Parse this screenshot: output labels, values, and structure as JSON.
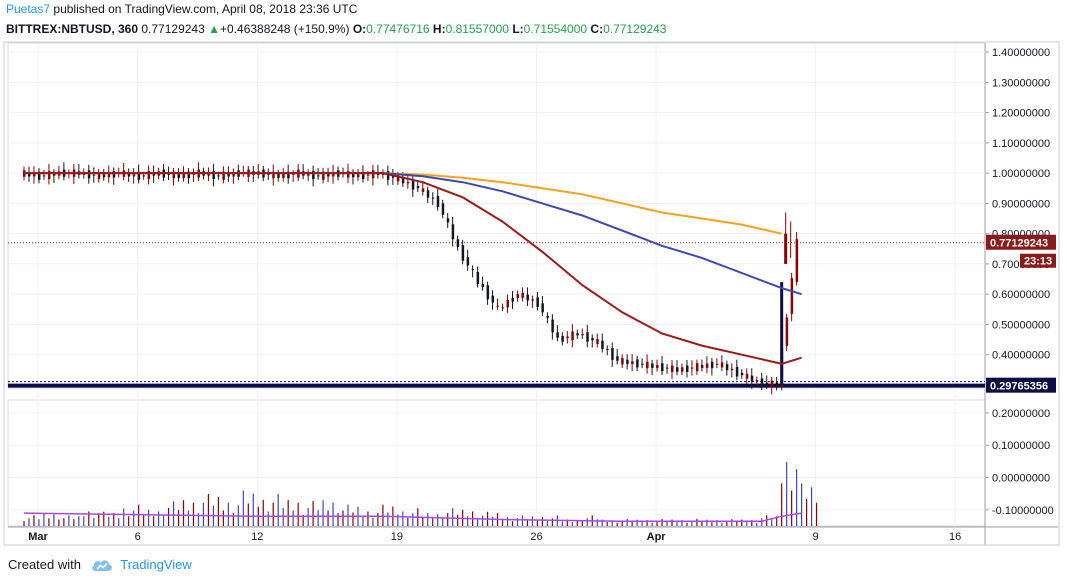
{
  "header": {
    "author": "Puetas7",
    "published_text": "published on TradingView.com, April 08, 2018 23:36 UTC"
  },
  "legend": {
    "symbol": "BITTREX:NBTUSD, 360",
    "last": "0.77129243",
    "change_arrow": "▲",
    "change": "+0.46388248 (+150.9%)",
    "o_label": "O:",
    "o_value": "0.77476716",
    "h_label": "H:",
    "h_value": "0.81557000",
    "l_label": "L:",
    "l_value": "0.71554000",
    "c_label": "C:",
    "c_value": "0.77129243"
  },
  "footer": {
    "created_with": "Created with",
    "brand": "TradingView",
    "logo_icon": "tradingview-cloud-icon"
  },
  "colors": {
    "bull": "#24a148",
    "bear": "#8b0000",
    "ma_short": "#9c1a1a",
    "ma_mid": "#3c4ab0",
    "ma_long": "#f7a21b",
    "volume_line": "#b044e6",
    "support_line": "#0d0d45",
    "price_tag": "#8b1a1a",
    "support_tag": "#0d0d45"
  },
  "chart_data": {
    "type": "candlestick",
    "price_axis": {
      "labels": [
        "1.40000000",
        "1.30000000",
        "1.20000000",
        "1.10000000",
        "1.00000000",
        "0.90000000",
        "0.80000000",
        "0.70000000",
        "0.60000000",
        "0.50000000",
        "0.40000000",
        "0.30000000"
      ],
      "ticks": [
        1.4,
        1.3,
        1.2,
        1.1,
        1.0,
        0.9,
        0.8,
        0.7,
        0.6,
        0.5,
        0.4,
        0.3
      ],
      "range": [
        0.29,
        1.43
      ]
    },
    "current_price_tag": "0.77129243",
    "countdown_tag": "23:13",
    "support_price": 0.29765356,
    "support_tag": "0.29765356",
    "time_axis": {
      "labels": [
        "Mar",
        "6",
        "12",
        "19",
        "26",
        "Apr",
        "9",
        "16"
      ],
      "positions": [
        0,
        5,
        11,
        18,
        25,
        31,
        39,
        46
      ],
      "start_day_label": "Mar"
    },
    "candles": [
      {
        "day": 0,
        "open": 1.0,
        "close": 0.99
      },
      {
        "day": 1,
        "open": 0.99,
        "close": 1.0
      },
      {
        "day": 2,
        "open": 1.0,
        "close": 1.0
      },
      {
        "day": 3,
        "open": 1.0,
        "close": 0.99
      },
      {
        "day": 4,
        "open": 0.99,
        "close": 1.0
      },
      {
        "day": 5,
        "open": 1.0,
        "close": 0.99
      },
      {
        "day": 6,
        "open": 0.99,
        "close": 1.0
      },
      {
        "day": 7,
        "open": 1.0,
        "close": 0.99
      },
      {
        "day": 8,
        "open": 0.99,
        "close": 1.0
      },
      {
        "day": 9,
        "open": 1.0,
        "close": 0.99
      },
      {
        "day": 10,
        "open": 0.99,
        "close": 1.0
      },
      {
        "day": 11,
        "open": 1.0,
        "close": 1.0
      },
      {
        "day": 12,
        "open": 1.0,
        "close": 0.99
      },
      {
        "day": 13,
        "open": 0.99,
        "close": 1.0
      },
      {
        "day": 14,
        "open": 1.0,
        "close": 0.99
      },
      {
        "day": 15,
        "open": 0.99,
        "close": 1.0
      },
      {
        "day": 16,
        "open": 1.0,
        "close": 0.99
      },
      {
        "day": 17,
        "open": 0.99,
        "close": 1.0
      },
      {
        "day": 18,
        "open": 1.0,
        "close": 0.98
      },
      {
        "day": 19,
        "open": 0.98,
        "close": 0.95
      },
      {
        "day": 20,
        "open": 0.95,
        "close": 0.9
      },
      {
        "day": 21,
        "open": 0.9,
        "close": 0.75
      },
      {
        "day": 22,
        "open": 0.75,
        "close": 0.64
      },
      {
        "day": 23,
        "open": 0.64,
        "close": 0.55
      },
      {
        "day": 24,
        "open": 0.55,
        "close": 0.6
      },
      {
        "day": 25,
        "open": 0.6,
        "close": 0.57
      },
      {
        "day": 26,
        "open": 0.57,
        "close": 0.45
      },
      {
        "day": 27,
        "open": 0.45,
        "close": 0.47
      },
      {
        "day": 28,
        "open": 0.47,
        "close": 0.44
      },
      {
        "day": 29,
        "open": 0.44,
        "close": 0.38
      },
      {
        "day": 30,
        "open": 0.38,
        "close": 0.37
      },
      {
        "day": 31,
        "open": 0.37,
        "close": 0.36
      },
      {
        "day": 32,
        "open": 0.36,
        "close": 0.35
      },
      {
        "day": 33,
        "open": 0.35,
        "close": 0.36
      },
      {
        "day": 34,
        "open": 0.36,
        "close": 0.37
      },
      {
        "day": 35,
        "open": 0.37,
        "close": 0.34
      },
      {
        "day": 36,
        "open": 0.34,
        "close": 0.31
      },
      {
        "day": 37,
        "open": 0.31,
        "close": 0.3
      },
      {
        "day": 38,
        "open": 0.3,
        "close": 0.77
      }
    ],
    "ma_short": [
      [
        0,
        1.0
      ],
      [
        18,
        1.0
      ],
      [
        20,
        0.97
      ],
      [
        22,
        0.92
      ],
      [
        24,
        0.84
      ],
      [
        26,
        0.74
      ],
      [
        28,
        0.63
      ],
      [
        30,
        0.54
      ],
      [
        32,
        0.47
      ],
      [
        34,
        0.43
      ],
      [
        36,
        0.4
      ],
      [
        38,
        0.37
      ],
      [
        39,
        0.39
      ]
    ],
    "ma_mid": [
      [
        0,
        1.0
      ],
      [
        18,
        1.0
      ],
      [
        20,
        0.99
      ],
      [
        22,
        0.97
      ],
      [
        24,
        0.94
      ],
      [
        26,
        0.9
      ],
      [
        28,
        0.86
      ],
      [
        30,
        0.81
      ],
      [
        32,
        0.76
      ],
      [
        34,
        0.72
      ],
      [
        36,
        0.67
      ],
      [
        38,
        0.62
      ],
      [
        39,
        0.6
      ]
    ],
    "ma_long": [
      [
        0,
        1.0
      ],
      [
        18,
        1.0
      ],
      [
        20,
        0.995
      ],
      [
        22,
        0.985
      ],
      [
        24,
        0.97
      ],
      [
        26,
        0.95
      ],
      [
        28,
        0.93
      ],
      [
        30,
        0.9
      ],
      [
        32,
        0.87
      ],
      [
        34,
        0.85
      ],
      [
        36,
        0.83
      ],
      [
        38,
        0.8
      ]
    ],
    "volume_axis": {
      "labels": [
        "0.20000000",
        "0.10000000",
        "0.00000000",
        "-0.10000000"
      ],
      "ticks": [
        0.2,
        0.1,
        0.0,
        -0.1
      ],
      "range": [
        -0.15,
        0.24
      ]
    },
    "volume": [
      0.03,
      0.04,
      0.03,
      0.05,
      0.04,
      0.06,
      0.05,
      0.07,
      0.08,
      0.09,
      0.08,
      0.1,
      0.09,
      0.08,
      0.07,
      0.08,
      0.06,
      0.05,
      0.06,
      0.05,
      0.04,
      0.05,
      0.05,
      0.04,
      0.03,
      0.03,
      0.03,
      0.02,
      0.03,
      0.02,
      0.02,
      0.02,
      0.02,
      0.02,
      0.02,
      0.02,
      0.02,
      0.03,
      0.22,
      0.12
    ],
    "volume_ma": [
      [
        0,
        -0.11
      ],
      [
        6,
        -0.115
      ],
      [
        12,
        -0.12
      ],
      [
        18,
        -0.12
      ],
      [
        24,
        -0.13
      ],
      [
        30,
        -0.135
      ],
      [
        37,
        -0.135
      ],
      [
        38,
        -0.12
      ],
      [
        39,
        -0.11
      ]
    ]
  }
}
